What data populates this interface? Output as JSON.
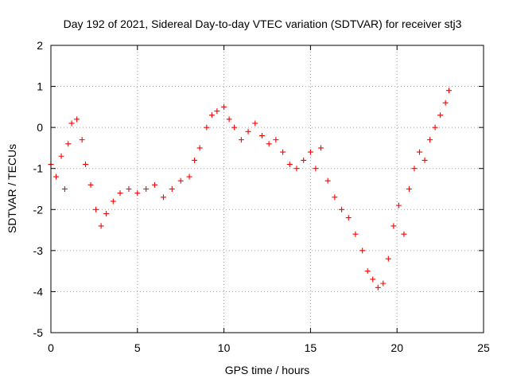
{
  "chart_data": {
    "type": "scatter",
    "title": "Day 192 of 2021, Sidereal Day-to-day VTEC variation (SDTVAR) for receiver stj3",
    "xlabel": "GPS time / hours",
    "ylabel": "SDTVAR / TECUs",
    "xlim": [
      0,
      25
    ],
    "ylim": [
      -5,
      2
    ],
    "xticks": [
      "0",
      "5",
      "10",
      "15",
      "20",
      "25"
    ],
    "yticks": [
      "-5",
      "-4",
      "-3",
      "-2",
      "-1",
      "0",
      "1",
      "2"
    ],
    "grid": true,
    "marker": "plus",
    "color": "#ff0000",
    "series": [
      {
        "name": "SDTVAR",
        "x": [
          0.0,
          0.3,
          0.6,
          0.8,
          1.0,
          1.2,
          1.5,
          1.8,
          2.0,
          2.3,
          2.6,
          2.9,
          3.2,
          3.6,
          4.0,
          4.5,
          5.0,
          5.5,
          6.0,
          6.5,
          7.0,
          7.5,
          8.0,
          8.3,
          8.6,
          9.0,
          9.3,
          9.6,
          10.0,
          10.3,
          10.6,
          11.0,
          11.4,
          11.8,
          12.2,
          12.6,
          13.0,
          13.4,
          13.8,
          14.2,
          14.6,
          15.0,
          15.3,
          15.6,
          16.0,
          16.4,
          16.8,
          17.2,
          17.6,
          18.0,
          18.3,
          18.6,
          18.9,
          19.2,
          19.5,
          19.8,
          20.1,
          20.4,
          20.7,
          21.0,
          21.3,
          21.6,
          21.9,
          22.2,
          22.5,
          22.8,
          23.0
        ],
        "y": [
          -0.9,
          -1.2,
          -0.7,
          -1.5,
          -0.4,
          0.1,
          0.2,
          -0.3,
          -0.9,
          -1.4,
          -2.0,
          -2.4,
          -2.1,
          -1.8,
          -1.6,
          -1.5,
          -1.6,
          -1.5,
          -1.4,
          -1.7,
          -1.5,
          -1.3,
          -1.2,
          -0.8,
          -0.5,
          0.0,
          0.3,
          0.4,
          0.5,
          0.2,
          0.0,
          -0.3,
          -0.1,
          0.1,
          -0.2,
          -0.4,
          -0.3,
          -0.6,
          -0.9,
          -1.0,
          -0.8,
          -0.6,
          -1.0,
          -0.5,
          -1.3,
          -1.7,
          -2.0,
          -2.2,
          -2.6,
          -3.0,
          -3.5,
          -3.7,
          -3.9,
          -3.8,
          -3.2,
          -2.4,
          -1.9,
          -2.6,
          -1.5,
          -1.0,
          -0.6,
          -0.8,
          -0.3,
          0.0,
          0.3,
          0.6,
          0.9
        ]
      }
    ]
  }
}
